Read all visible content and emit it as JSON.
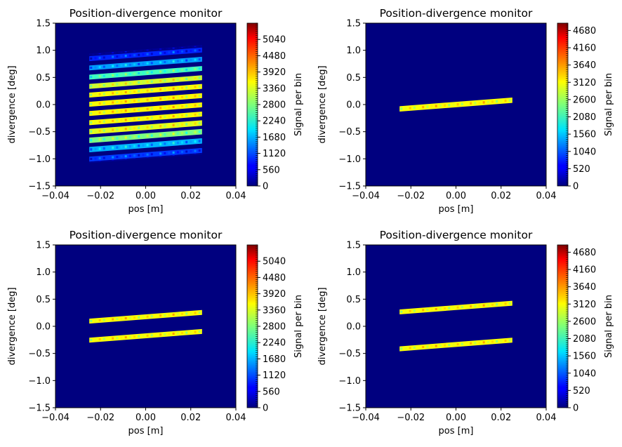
{
  "chart_data": [
    {
      "type": "heatmap",
      "title": "Position-divergence monitor",
      "xlabel": "pos [m]",
      "ylabel": "divergence [deg]",
      "xlim": [
        -0.04,
        0.04
      ],
      "ylim": [
        -1.5,
        1.5
      ],
      "xticks": [
        "−0.04",
        "−0.02",
        "0.00",
        "0.02",
        "0.04"
      ],
      "yticks": [
        "1.5",
        "1.0",
        "0.5",
        "0.0",
        "−0.5",
        "−1.0",
        "−1.5"
      ],
      "colorbar": {
        "label": "Signal per bin",
        "max": 5600,
        "ticks": [
          "5040",
          "4480",
          "3920",
          "3360",
          "2800",
          "2240",
          "1680",
          "1120",
          "560",
          "0"
        ]
      },
      "bands": [
        {
          "y0": -1.0,
          "y1": -0.93,
          "level": 0.02
        },
        {
          "y0": -0.97,
          "y1": -0.88,
          "level": 0.18
        },
        {
          "y0": -0.8,
          "y1": -0.7,
          "level": 0.3
        },
        {
          "y0": -0.63,
          "y1": -0.53,
          "level": 0.5
        },
        {
          "y0": -0.47,
          "y1": -0.37,
          "level": 0.6
        },
        {
          "y0": -0.3,
          "y1": -0.21,
          "level": 0.62
        },
        {
          "y0": -0.13,
          "y1": -0.04,
          "level": 0.63
        },
        {
          "y0": 0.04,
          "y1": 0.13,
          "level": 0.63
        },
        {
          "y0": 0.21,
          "y1": 0.3,
          "level": 0.62
        },
        {
          "y0": 0.37,
          "y1": 0.46,
          "level": 0.58
        },
        {
          "y0": 0.54,
          "y1": 0.63,
          "level": 0.44
        },
        {
          "y0": 0.71,
          "y1": 0.8,
          "level": 0.28
        },
        {
          "y0": 0.88,
          "y1": 0.97,
          "level": 0.16
        },
        {
          "y0": 0.98,
          "y1": 1.02,
          "level": 0.02
        }
      ],
      "band_x": [
        -0.025,
        0.025
      ],
      "band_slope": 3.2
    },
    {
      "type": "heatmap",
      "title": "Position-divergence monitor",
      "xlabel": "pos [m]",
      "ylabel": "divergence [deg]",
      "xlim": [
        -0.04,
        0.04
      ],
      "ylim": [
        -1.5,
        1.5
      ],
      "xticks": [
        "−0.04",
        "−0.02",
        "0.00",
        "0.02",
        "0.04"
      ],
      "yticks": [
        "1.5",
        "1.0",
        "0.5",
        "0.0",
        "−0.5",
        "−1.0",
        "−1.5"
      ],
      "colorbar": {
        "label": "Signal per bin",
        "max": 4900,
        "ticks": [
          "4680",
          "4160",
          "3640",
          "3120",
          "2600",
          "2080",
          "1560",
          "1040",
          "520",
          "0"
        ]
      },
      "bands": [
        {
          "y0": -0.05,
          "y1": 0.05,
          "level": 0.62
        }
      ],
      "band_x": [
        -0.025,
        0.025
      ],
      "band_slope": 3.2
    },
    {
      "type": "heatmap",
      "title": "Position-divergence monitor",
      "xlabel": "pos [m]",
      "ylabel": "divergence [deg]",
      "xlim": [
        -0.04,
        0.04
      ],
      "ylim": [
        -1.5,
        1.5
      ],
      "xticks": [
        "−0.04",
        "−0.02",
        "0.00",
        "0.02",
        "0.04"
      ],
      "yticks": [
        "1.5",
        "1.0",
        "0.5",
        "0.0",
        "−0.5",
        "−1.0",
        "−1.5"
      ],
      "colorbar": {
        "label": "Signal per bin",
        "max": 5600,
        "ticks": [
          "5040",
          "4480",
          "3920",
          "3360",
          "2800",
          "2240",
          "1680",
          "1120",
          "560",
          "0"
        ]
      },
      "bands": [
        {
          "y0": -0.22,
          "y1": -0.13,
          "level": 0.62
        },
        {
          "y0": 0.13,
          "y1": 0.22,
          "level": 0.62
        }
      ],
      "band_x": [
        -0.025,
        0.025
      ],
      "band_slope": 3.2
    },
    {
      "type": "heatmap",
      "title": "Position-divergence monitor",
      "xlabel": "pos [m]",
      "ylabel": "divergence [deg]",
      "xlim": [
        -0.04,
        0.04
      ],
      "ylim": [
        -1.5,
        1.5
      ],
      "xticks": [
        "−0.04",
        "−0.02",
        "0.00",
        "0.02",
        "0.04"
      ],
      "yticks": [
        "1.5",
        "1.0",
        "0.5",
        "0.0",
        "−0.5",
        "−1.0",
        "−1.5"
      ],
      "colorbar": {
        "label": "Signal per bin",
        "max": 4900,
        "ticks": [
          "4680",
          "4160",
          "3640",
          "3120",
          "2600",
          "2080",
          "1560",
          "1040",
          "520",
          "0"
        ]
      },
      "bands": [
        {
          "y0": -0.38,
          "y1": -0.29,
          "level": 0.62
        },
        {
          "y0": 0.3,
          "y1": 0.39,
          "level": 0.62
        }
      ],
      "band_x": [
        -0.025,
        0.025
      ],
      "band_slope": 3.2
    }
  ]
}
